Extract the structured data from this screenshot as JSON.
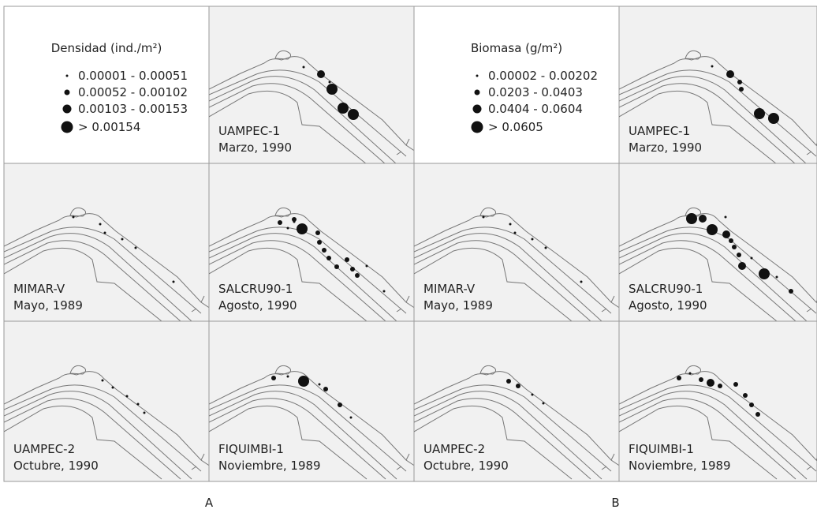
{
  "panels": [
    {
      "label": "A",
      "legend": {
        "title": "Densidad (ind./m²)",
        "items": [
          "0.00001 - 0.00051",
          "0.00052 - 0.00102",
          "0.00103 - 0.00153",
          "> 0.00154"
        ]
      },
      "maps": [
        {
          "cruise": "UAMPEC-1",
          "date": "Marzo, 1990"
        },
        {
          "cruise": "MIMAR-V",
          "date": "Mayo, 1989"
        },
        {
          "cruise": "SALCRU90-1",
          "date": "Agosto, 1990"
        },
        {
          "cruise": "UAMPEC-2",
          "date": "Octubre, 1990"
        },
        {
          "cruise": "FIQUIMBI-1",
          "date": "Noviembre, 1989"
        }
      ]
    },
    {
      "label": "B",
      "legend": {
        "title": "Biomasa (g/m²)",
        "items": [
          "0.00002 - 0.00202",
          "0.0203 - 0.0403",
          "0.0404 - 0.0604",
          "> 0.0605"
        ]
      },
      "maps": [
        {
          "cruise": "UAMPEC-1",
          "date": "Marzo, 1990"
        },
        {
          "cruise": "MIMAR-V",
          "date": "Mayo, 1989"
        },
        {
          "cruise": "SALCRU90-1",
          "date": "Agosto, 1990"
        },
        {
          "cruise": "UAMPEC-2",
          "date": "Octubre, 1990"
        },
        {
          "cruise": "FIQUIMBI-1",
          "date": "Noviembre, 1989"
        }
      ]
    }
  ]
}
